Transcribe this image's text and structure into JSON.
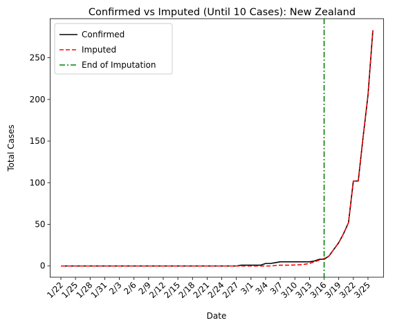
{
  "chart_data": {
    "type": "line",
    "title": "Confirmed vs Imputed (Until 10 Cases): New Zealand",
    "xlabel": "Date",
    "ylabel": "Total Cases",
    "x": [
      "1/22",
      "1/23",
      "1/24",
      "1/25",
      "1/26",
      "1/27",
      "1/28",
      "1/29",
      "1/30",
      "1/31",
      "2/1",
      "2/2",
      "2/3",
      "2/4",
      "2/5",
      "2/6",
      "2/7",
      "2/8",
      "2/9",
      "2/10",
      "2/11",
      "2/12",
      "2/13",
      "2/14",
      "2/15",
      "2/16",
      "2/17",
      "2/18",
      "2/19",
      "2/20",
      "2/21",
      "2/22",
      "2/23",
      "2/24",
      "2/25",
      "2/26",
      "2/27",
      "2/28",
      "2/29",
      "3/1",
      "3/2",
      "3/3",
      "3/4",
      "3/5",
      "3/6",
      "3/7",
      "3/8",
      "3/9",
      "3/10",
      "3/11",
      "3/12",
      "3/13",
      "3/14",
      "3/15",
      "3/16",
      "3/17",
      "3/18",
      "3/19",
      "3/20",
      "3/21",
      "3/22",
      "3/23",
      "3/24",
      "3/25",
      "3/26"
    ],
    "xticks": [
      "1/22",
      "1/25",
      "1/28",
      "1/31",
      "2/3",
      "2/6",
      "2/9",
      "2/12",
      "2/15",
      "2/18",
      "2/21",
      "2/24",
      "2/27",
      "3/1",
      "3/4",
      "3/7",
      "3/10",
      "3/13",
      "3/16",
      "3/19",
      "3/22",
      "3/25"
    ],
    "yticks": [
      0,
      50,
      100,
      150,
      200,
      250
    ],
    "ylim": [
      -13.5,
      297
    ],
    "legend_position": "top-left",
    "series": [
      {
        "name": "Confirmed",
        "color": "#000000",
        "style": "solid",
        "values": [
          0,
          0,
          0,
          0,
          0,
          0,
          0,
          0,
          0,
          0,
          0,
          0,
          0,
          0,
          0,
          0,
          0,
          0,
          0,
          0,
          0,
          0,
          0,
          0,
          0,
          0,
          0,
          0,
          0,
          0,
          0,
          0,
          0,
          0,
          0,
          0,
          0,
          1,
          1,
          1,
          1,
          1,
          3,
          3,
          4,
          5,
          5,
          5,
          5,
          5,
          5,
          5,
          6,
          8,
          8,
          12,
          20,
          28,
          39,
          52,
          102,
          102,
          155,
          205,
          283
        ]
      },
      {
        "name": "Imputed",
        "color": "#ff0000",
        "style": "dashed",
        "values": [
          0,
          0,
          0,
          0,
          0,
          0,
          0,
          0,
          0,
          0,
          0,
          0,
          0,
          0,
          0,
          0,
          0,
          0,
          0,
          0,
          0,
          0,
          0,
          0,
          0,
          0,
          0,
          0,
          0,
          0,
          0,
          0,
          0,
          0,
          0,
          0,
          0,
          0,
          0,
          0,
          0,
          0,
          0,
          0,
          0.5,
          1,
          1,
          1,
          1.2,
          1.5,
          2,
          3,
          5,
          7,
          9,
          12,
          20,
          28,
          39,
          52,
          102,
          102,
          155,
          205,
          283
        ]
      }
    ],
    "vline": {
      "name": "End of Imputation",
      "x": "3/16",
      "color": "#008000",
      "style": "dashdot"
    }
  }
}
